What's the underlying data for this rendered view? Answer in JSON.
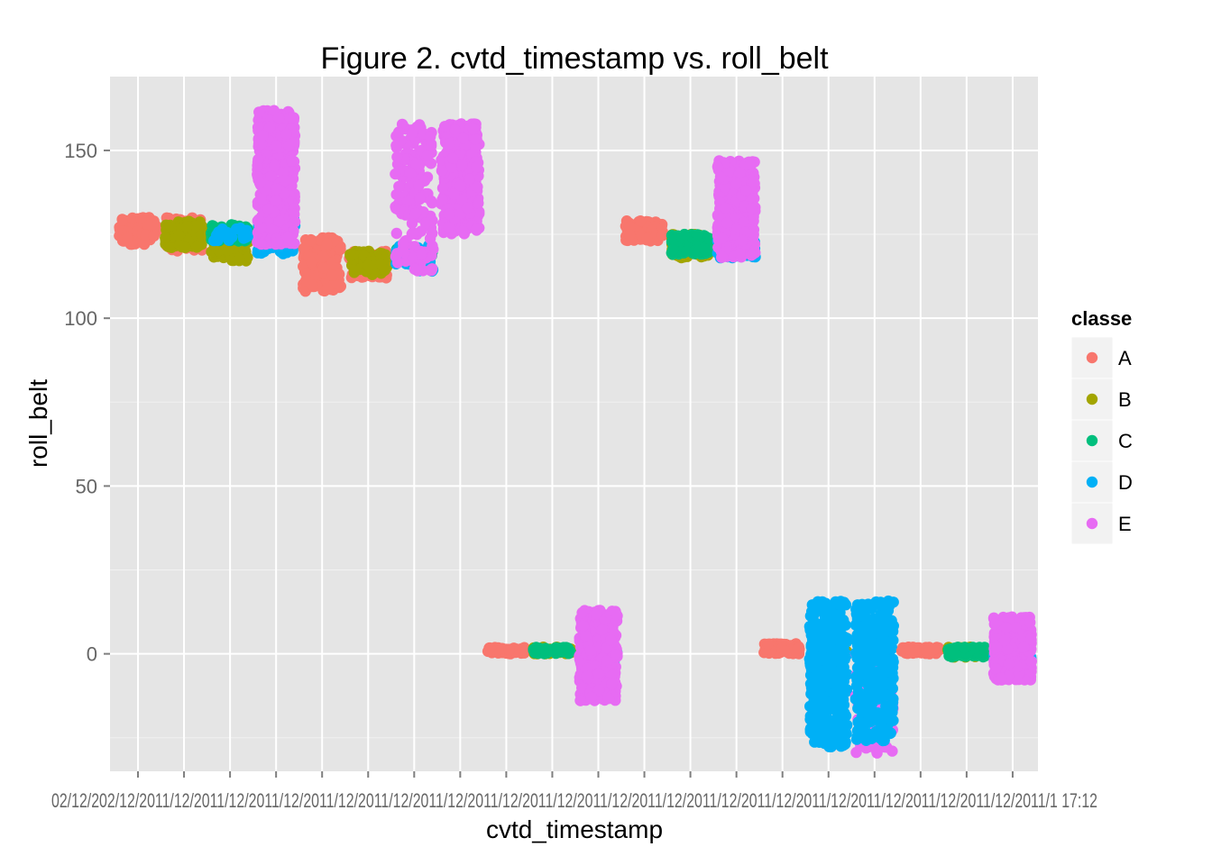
{
  "chart_data": {
    "type": "scatter",
    "title": "Figure 2. cvtd_timestamp vs. roll_belt",
    "xlabel": "cvtd_timestamp",
    "ylabel": "roll_belt",
    "ylim": [
      -35,
      172
    ],
    "y_ticks": [
      0,
      50,
      100,
      150
    ],
    "x_tick_label_text": "02/12/202/12/2011/12/2011/12/2011/12/2011/12/2011/12/2011/12/2011/12/2011/12/2011/12/2011/12/2011/12/2011/12/2011/12/2011/12/2011/12/2011/12/2011/1 17:12",
    "x_categories": 20,
    "grid": true,
    "legend": {
      "title": "classe",
      "position": "right",
      "entries": [
        {
          "label": "A",
          "color": "#F8766D"
        },
        {
          "label": "B",
          "color": "#A3A500"
        },
        {
          "label": "C",
          "color": "#00BF7D"
        },
        {
          "label": "D",
          "color": "#00B0F6"
        },
        {
          "label": "E",
          "color": "#E76BF3"
        }
      ]
    },
    "clusters": [
      {
        "x": 1,
        "series": "A",
        "ymin": 122,
        "ymax": 130,
        "n": 90
      },
      {
        "x": 2,
        "series": "A",
        "ymin": 120,
        "ymax": 130,
        "n": 70
      },
      {
        "x": 2,
        "series": "B",
        "ymin": 121,
        "ymax": 129,
        "n": 90
      },
      {
        "x": 3,
        "series": "B",
        "ymin": 117,
        "ymax": 126,
        "n": 70
      },
      {
        "x": 3,
        "series": "C",
        "ymin": 123,
        "ymax": 128,
        "n": 80
      },
      {
        "x": 3,
        "series": "D",
        "ymin": 123,
        "ymax": 127,
        "n": 25
      },
      {
        "x": 4,
        "series": "D",
        "ymin": 119,
        "ymax": 130,
        "n": 60
      },
      {
        "x": 4,
        "series": "E",
        "ymin": 122,
        "ymax": 162,
        "n": 480
      },
      {
        "x": 5,
        "series": "A",
        "ymin": 108,
        "ymax": 124,
        "n": 150
      },
      {
        "x": 6,
        "series": "A",
        "ymin": 112,
        "ymax": 120,
        "n": 70
      },
      {
        "x": 6,
        "series": "B",
        "ymin": 113,
        "ymax": 120,
        "n": 80
      },
      {
        "x": 7,
        "series": "C",
        "ymin": 116,
        "ymax": 121,
        "n": 35
      },
      {
        "x": 7,
        "series": "D",
        "ymin": 114,
        "ymax": 122,
        "n": 55
      },
      {
        "x": 7,
        "series": "E",
        "ymin": 114,
        "ymax": 158,
        "n": 170
      },
      {
        "x": 8,
        "series": "E",
        "ymin": 125,
        "ymax": 158,
        "n": 340
      },
      {
        "x": 9,
        "series": "A",
        "ymin": 0,
        "ymax": 2,
        "n": 60
      },
      {
        "x": 10,
        "series": "B",
        "ymin": 0,
        "ymax": 2,
        "n": 45
      },
      {
        "x": 10,
        "series": "C",
        "ymin": 0,
        "ymax": 2,
        "n": 55
      },
      {
        "x": 11,
        "series": "D",
        "ymin": -3,
        "ymax": 3,
        "n": 40
      },
      {
        "x": 11,
        "series": "E",
        "ymin": -14,
        "ymax": 13,
        "n": 340
      },
      {
        "x": 12,
        "series": "A",
        "ymin": 123,
        "ymax": 129,
        "n": 90
      },
      {
        "x": 13,
        "series": "B",
        "ymin": 118,
        "ymax": 125,
        "n": 90
      },
      {
        "x": 13,
        "series": "C",
        "ymin": 119,
        "ymax": 125,
        "n": 90
      },
      {
        "x": 14,
        "series": "D",
        "ymin": 118,
        "ymax": 124,
        "n": 70
      },
      {
        "x": 14,
        "series": "E",
        "ymin": 118,
        "ymax": 147,
        "n": 300
      },
      {
        "x": 15,
        "series": "A",
        "ymin": 0,
        "ymax": 3,
        "n": 70
      },
      {
        "x": 16,
        "series": "B",
        "ymin": 0,
        "ymax": 3,
        "n": 30
      },
      {
        "x": 16,
        "series": "D",
        "ymin": -28,
        "ymax": 16,
        "n": 380
      },
      {
        "x": 17,
        "series": "E",
        "ymin": -30,
        "ymax": 5,
        "n": 110
      },
      {
        "x": 17,
        "series": "D",
        "ymin": -26,
        "ymax": 16,
        "n": 300
      },
      {
        "x": 18,
        "series": "A",
        "ymin": 0,
        "ymax": 2,
        "n": 70
      },
      {
        "x": 19,
        "series": "B",
        "ymin": -1,
        "ymax": 2,
        "n": 50
      },
      {
        "x": 19,
        "series": "C",
        "ymin": -1,
        "ymax": 2,
        "n": 70
      },
      {
        "x": 20,
        "series": "D",
        "ymin": -2,
        "ymax": 3,
        "n": 50
      },
      {
        "x": 20,
        "series": "E",
        "ymin": -8,
        "ymax": 11,
        "n": 330
      }
    ]
  }
}
